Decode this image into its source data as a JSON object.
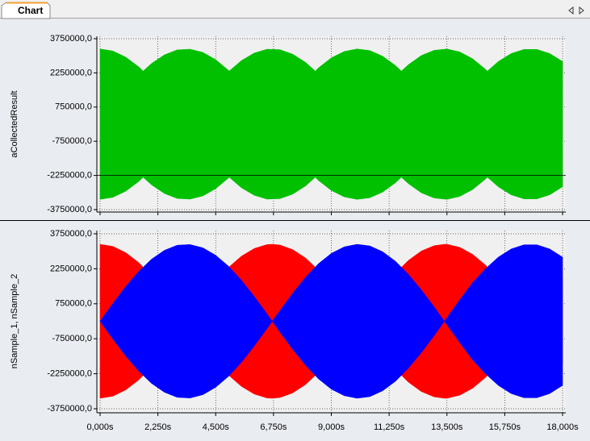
{
  "tab_label": "Chart",
  "chart_data": [
    {
      "type": "area",
      "ylabel": "aCollectedResult",
      "x": [
        0,
        0.5,
        1,
        1.5,
        1.675,
        2,
        2.5,
        3,
        3.5,
        4,
        4.5,
        5,
        5.025,
        5.5,
        6,
        6.5,
        7,
        7.5,
        8,
        8.375,
        8.5,
        9,
        9.5,
        10,
        10.5,
        11,
        11.5,
        11.725,
        12,
        12.5,
        13,
        13.5,
        14,
        14.5,
        15,
        15.075,
        15.5,
        16,
        16.5,
        17,
        17.5,
        18
      ],
      "series": [
        {
          "color": "#00c000",
          "upper": [
            3300000,
            3210000,
            2940000,
            2520000,
            2330000,
            2660000,
            3040000,
            3260000,
            3290000,
            3150000,
            2830000,
            2360000,
            2330000,
            2790000,
            3120000,
            3290000,
            3270000,
            3070000,
            2710000,
            2330000,
            2470000,
            2910000,
            3190000,
            3300000,
            3230000,
            2980000,
            2570000,
            2330000,
            2610000,
            3010000,
            3240000,
            3300000,
            3170000,
            2870000,
            2410000,
            2330000,
            2750000,
            3100000,
            3280000,
            3280000,
            3100000,
            2750000
          ],
          "lower": [
            -3300000,
            -3210000,
            -2940000,
            -2520000,
            -2330000,
            -2660000,
            -3040000,
            -3260000,
            -3290000,
            -3150000,
            -2830000,
            -2360000,
            -2330000,
            -2790000,
            -3120000,
            -3290000,
            -3270000,
            -3070000,
            -2710000,
            -2330000,
            -2470000,
            -2910000,
            -3190000,
            -3300000,
            -3230000,
            -2980000,
            -2570000,
            -2330000,
            -2610000,
            -3010000,
            -3240000,
            -3300000,
            -3170000,
            -2870000,
            -2410000,
            -2330000,
            -2750000,
            -3100000,
            -3280000,
            -3280000,
            -3100000,
            -2750000
          ]
        }
      ],
      "xlim": [
        0,
        18
      ],
      "xticks": [
        0,
        2.25,
        4.5,
        6.75,
        9,
        11.25,
        13.5,
        15.75,
        18
      ],
      "ylim": [
        -3750000,
        3750000
      ],
      "yticks": [
        {
          "value": 3750000,
          "label": "3750000,0"
        },
        {
          "value": 2250000,
          "label": "2250000,0"
        },
        {
          "value": 750000,
          "label": "750000,0"
        },
        {
          "value": -750000,
          "label": "-750000,0"
        },
        {
          "value": -2250000,
          "label": "-2250000,0"
        },
        {
          "value": -3750000,
          "label": "-3750000,0"
        }
      ],
      "grid": true,
      "hline": -2250000
    },
    {
      "type": "area",
      "ylabel": "nSample_1, nSample_2",
      "x": [
        0,
        0.5,
        1,
        1.5,
        2,
        2.5,
        3,
        3.5,
        4,
        4.5,
        5,
        5.5,
        6,
        6.5,
        6.7,
        7,
        7.5,
        8,
        8.5,
        9,
        9.5,
        10,
        10.5,
        11,
        11.5,
        12,
        12.5,
        13,
        13.4,
        13.5,
        14,
        14.5,
        15,
        15.5,
        16,
        16.5,
        17,
        17.5,
        18
      ],
      "series": [
        {
          "color": "#ff0000",
          "upper": [
            3300000,
            3210000,
            2940000,
            2520000,
            1950000,
            1280000,
            540000,
            230000,
            990000,
            1690000,
            2310000,
            2790000,
            3120000,
            3290000,
            3300000,
            3270000,
            3070000,
            2710000,
            2190000,
            1560000,
            840000,
            80000,
            690000,
            1420000,
            2070000,
            2610000,
            3010000,
            3240000,
            3300000,
            3300000,
            3170000,
            2870000,
            2410000,
            1820000,
            1130000,
            370000,
            390000,
            1140000,
            1830000
          ],
          "lower": [
            -3300000,
            -3210000,
            -2940000,
            -2520000,
            -1950000,
            -1280000,
            -540000,
            -230000,
            -990000,
            -1690000,
            -2310000,
            -2790000,
            -3120000,
            -3290000,
            -3300000,
            -3270000,
            -3070000,
            -2710000,
            -2190000,
            -1560000,
            -840000,
            -80000,
            -690000,
            -1420000,
            -2070000,
            -2610000,
            -3010000,
            -3240000,
            -3300000,
            -3300000,
            -3170000,
            -2870000,
            -2410000,
            -1820000,
            -1130000,
            -370000,
            -390000,
            -1140000,
            -1830000
          ]
        },
        {
          "color": "#0000ff",
          "upper": [
            0,
            770000,
            1490000,
            2130000,
            2660000,
            3040000,
            3260000,
            3290000,
            3150000,
            2830000,
            2360000,
            1760000,
            1060000,
            310000,
            0,
            460000,
            1210000,
            1890000,
            2470000,
            2910000,
            3190000,
            3300000,
            3230000,
            2980000,
            2570000,
            2010000,
            1350000,
            620000,
            0,
            150000,
            920000,
            1660000,
            2250000,
            2750000,
            3100000,
            3280000,
            3280000,
            3100000,
            2750000
          ],
          "lower": [
            0,
            -770000,
            -1490000,
            -2130000,
            -2660000,
            -3040000,
            -3260000,
            -3290000,
            -3150000,
            -2830000,
            -2360000,
            -1760000,
            -1060000,
            -310000,
            0,
            -460000,
            -1210000,
            -1890000,
            -2470000,
            -2910000,
            -3190000,
            -3300000,
            -3230000,
            -2980000,
            -2570000,
            -2010000,
            -1350000,
            -620000,
            0,
            -150000,
            -920000,
            -1660000,
            -2250000,
            -2750000,
            -3100000,
            -3280000,
            -3280000,
            -3100000,
            -2750000
          ]
        }
      ],
      "xlim": [
        0,
        18
      ],
      "xticks": [
        {
          "value": 0,
          "label": "0,000s"
        },
        {
          "value": 2.25,
          "label": "2,250s"
        },
        {
          "value": 4.5,
          "label": "4,500s"
        },
        {
          "value": 6.75,
          "label": "6,750s"
        },
        {
          "value": 9,
          "label": "9,000s"
        },
        {
          "value": 11.25,
          "label": "11,250s"
        },
        {
          "value": 13.5,
          "label": "13,500s"
        },
        {
          "value": 15.75,
          "label": "15,750s"
        },
        {
          "value": 18,
          "label": "18,000s"
        }
      ],
      "ylim": [
        -3750000,
        3750000
      ],
      "yticks": [
        {
          "value": 3750000,
          "label": "3750000,0"
        },
        {
          "value": 2250000,
          "label": "2250000,0"
        },
        {
          "value": 750000,
          "label": "750000,0"
        },
        {
          "value": -750000,
          "label": "-750000,0"
        },
        {
          "value": -2250000,
          "label": "-2250000,0"
        },
        {
          "value": -3750000,
          "label": "-3750000,0"
        }
      ],
      "grid": true
    }
  ]
}
